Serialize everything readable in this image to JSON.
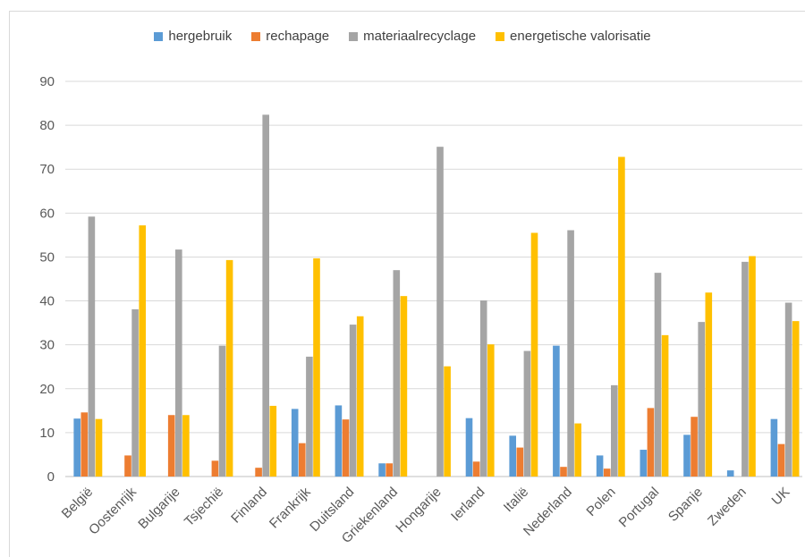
{
  "chart_data": {
    "type": "bar",
    "categories": [
      "België",
      "Oostenrijk",
      "Bulgarije",
      "Tsjechië",
      "Finland",
      "Frankrijk",
      "Duitsland",
      "Griekenland",
      "Hongarije",
      "Ierland",
      "Italië",
      "Nederland",
      "Polen",
      "Portugal",
      "Spanje",
      "Zweden",
      "UK"
    ],
    "series": [
      {
        "name": "hergebruik",
        "color": "#5b9bd5",
        "values": [
          13.2,
          0,
          0,
          0,
          0,
          15.4,
          16.2,
          3.0,
          0,
          13.3,
          9.3,
          29.8,
          4.8,
          6.1,
          9.5,
          1.4,
          13.1
        ]
      },
      {
        "name": "rechapage",
        "color": "#ed7d31",
        "values": [
          14.6,
          4.8,
          14.0,
          3.6,
          2.0,
          7.6,
          13.0,
          3.0,
          0,
          3.4,
          6.6,
          2.2,
          1.8,
          15.6,
          13.6,
          0,
          7.4
        ]
      },
      {
        "name": "materiaalrecyclage",
        "color": "#a5a5a5",
        "values": [
          59.2,
          38.1,
          51.7,
          29.8,
          82.4,
          27.3,
          34.6,
          47.0,
          75.1,
          40.1,
          28.6,
          56.1,
          20.8,
          46.4,
          35.2,
          48.9,
          39.6
        ]
      },
      {
        "name": "energetische valorisatie",
        "color": "#ffc000",
        "values": [
          13.1,
          57.2,
          14.0,
          49.3,
          16.1,
          49.7,
          36.5,
          41.1,
          25.1,
          30.1,
          55.5,
          12.1,
          72.8,
          32.2,
          41.9,
          50.2,
          35.4
        ]
      }
    ],
    "ylim": [
      0,
      90
    ],
    "yticks": [
      0,
      10,
      20,
      30,
      40,
      50,
      60,
      70,
      80,
      90
    ],
    "grid": true,
    "legend": "top-center"
  }
}
